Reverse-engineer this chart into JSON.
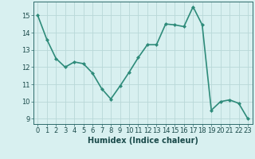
{
  "x": [
    0,
    1,
    2,
    3,
    4,
    5,
    6,
    7,
    8,
    9,
    10,
    11,
    12,
    13,
    14,
    15,
    16,
    17,
    18,
    19,
    20,
    21,
    22,
    23
  ],
  "y": [
    15.0,
    13.6,
    12.5,
    12.0,
    12.3,
    12.2,
    11.65,
    10.75,
    10.15,
    10.9,
    11.7,
    12.55,
    13.3,
    13.3,
    14.5,
    14.45,
    14.35,
    15.5,
    14.45,
    9.5,
    10.0,
    10.1,
    9.9,
    9.0
  ],
  "line_color": "#2e8b7a",
  "marker": "D",
  "marker_size": 2,
  "bg_color": "#d8f0f0",
  "grid_color": "#b8d8d8",
  "xlabel": "Humidex (Indice chaleur)",
  "ylim": [
    8.7,
    15.8
  ],
  "xlim": [
    -0.5,
    23.5
  ],
  "yticks": [
    9,
    10,
    11,
    12,
    13,
    14,
    15
  ],
  "xticks": [
    0,
    1,
    2,
    3,
    4,
    5,
    6,
    7,
    8,
    9,
    10,
    11,
    12,
    13,
    14,
    15,
    16,
    17,
    18,
    19,
    20,
    21,
    22,
    23
  ],
  "tick_fontsize": 6,
  "xlabel_fontsize": 7,
  "linewidth": 1.2,
  "tick_color": "#2e6b6b",
  "label_color": "#1a4a4a"
}
